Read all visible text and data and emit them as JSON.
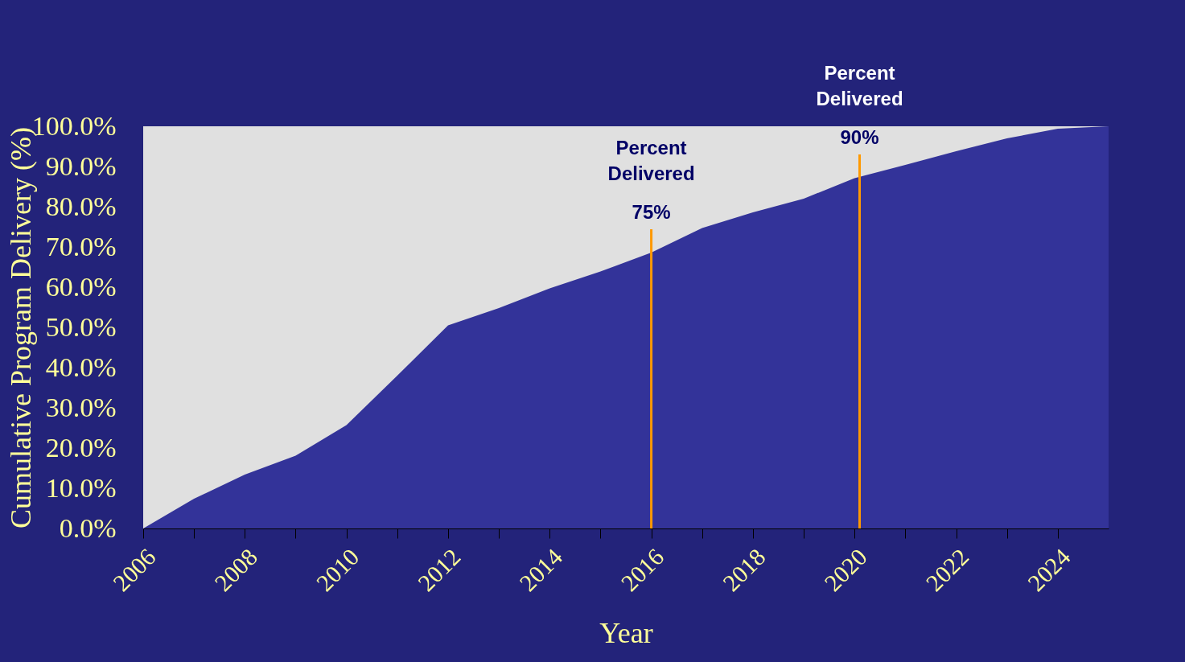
{
  "chart_data": {
    "type": "area",
    "xlabel": "Year",
    "ylabel": "Cumulative Program Delivery (%)",
    "x": [
      2006,
      2007,
      2008,
      2009,
      2010,
      2011,
      2012,
      2013,
      2014,
      2015,
      2016,
      2017,
      2018,
      2019,
      2020,
      2021,
      2022,
      2023,
      2024,
      2025
    ],
    "series": [
      {
        "color": "#333399",
        "values": [
          0,
          7.4,
          13.4,
          18.1,
          25.7,
          38,
          50.5,
          54.8,
          59.7,
          63.9,
          68.6,
          74.7,
          78.6,
          82,
          87.1,
          90.4,
          93.8,
          97,
          99.4,
          100
        ]
      }
    ],
    "xlim": [
      2006,
      2025
    ],
    "xticks": [
      2006,
      {
        "value": 2007,
        "label": null
      },
      2008,
      {
        "value": 2009,
        "label": null
      },
      2010,
      {
        "value": 2011,
        "label": null
      },
      2012,
      {
        "value": 2013,
        "label": null
      },
      2014,
      {
        "value": 2015,
        "label": null
      },
      2016,
      {
        "value": 2017,
        "label": null
      },
      2018,
      {
        "value": 2019,
        "label": null
      },
      2020,
      {
        "value": 2021,
        "label": null
      },
      2022,
      {
        "value": 2023,
        "label": null
      },
      2024
    ],
    "ylim": [
      0,
      100
    ],
    "yticks": [
      {
        "value": 0,
        "label": "0.0%"
      },
      {
        "value": 10,
        "label": "10.0%"
      },
      {
        "value": 20,
        "label": "20.0%"
      },
      {
        "value": 30,
        "label": "30.0%"
      },
      {
        "value": 40,
        "label": "40.0%"
      },
      {
        "value": 50,
        "label": "50.0%"
      },
      {
        "value": 60,
        "label": "60.0%"
      },
      {
        "value": 70,
        "label": "70.0%"
      },
      {
        "value": 80,
        "label": "80.0%"
      },
      {
        "value": 90,
        "label": "90.0%"
      },
      {
        "value": 100,
        "label": "100.0%"
      }
    ],
    "ref_lines": [
      {
        "axis": "x",
        "value": 2016,
        "label": "Percent\nDelivered\n75%",
        "color": "#ff9900"
      },
      {
        "axis": "x",
        "value": 2020.1,
        "label": "Percent\nDelivered\n90%",
        "color": "#ff9900"
      }
    ],
    "grid": false
  }
}
